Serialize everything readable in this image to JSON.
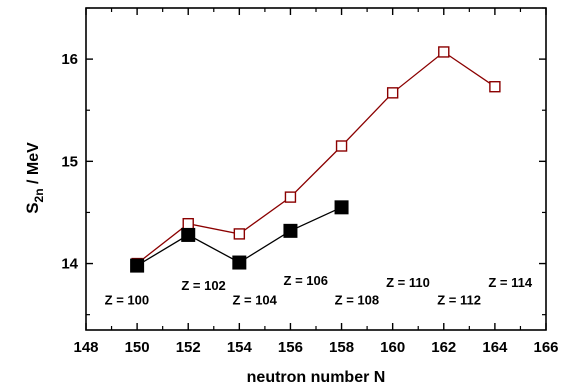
{
  "chart_data": {
    "type": "line",
    "xlabel": "neutron number N",
    "ylabel_main": "S",
    "ylabel_sub": "2n",
    "ylabel_unit": " / MeV",
    "xlim": [
      148,
      166
    ],
    "ylim": [
      13.35,
      16.5
    ],
    "xticks": [
      148,
      150,
      152,
      154,
      156,
      158,
      160,
      162,
      164,
      166
    ],
    "yticks": [
      14,
      15,
      16
    ],
    "grid": false,
    "series": [
      {
        "marker": "open-square",
        "color": "#8b0000",
        "x": [
          150,
          152,
          154,
          156,
          158,
          160,
          162,
          164
        ],
        "y": [
          14.0,
          14.39,
          14.29,
          14.65,
          15.15,
          15.67,
          16.07,
          15.73
        ]
      },
      {
        "marker": "filled-square",
        "color": "#000000",
        "x": [
          150,
          152,
          154,
          156,
          158
        ],
        "y": [
          13.98,
          14.28,
          14.01,
          14.32,
          14.55
        ]
      }
    ],
    "annotations": [
      {
        "text": "Z = 100",
        "x": 149.6,
        "y": 13.6
      },
      {
        "text": "Z = 102",
        "x": 152.6,
        "y": 13.74
      },
      {
        "text": "Z = 104",
        "x": 154.6,
        "y": 13.6
      },
      {
        "text": "Z = 106",
        "x": 156.6,
        "y": 13.79
      },
      {
        "text": "Z = 108",
        "x": 158.6,
        "y": 13.6
      },
      {
        "text": "Z = 110",
        "x": 160.6,
        "y": 13.77
      },
      {
        "text": "Z = 112",
        "x": 162.6,
        "y": 13.6
      },
      {
        "text": "Z = 114",
        "x": 164.6,
        "y": 13.77
      }
    ]
  }
}
